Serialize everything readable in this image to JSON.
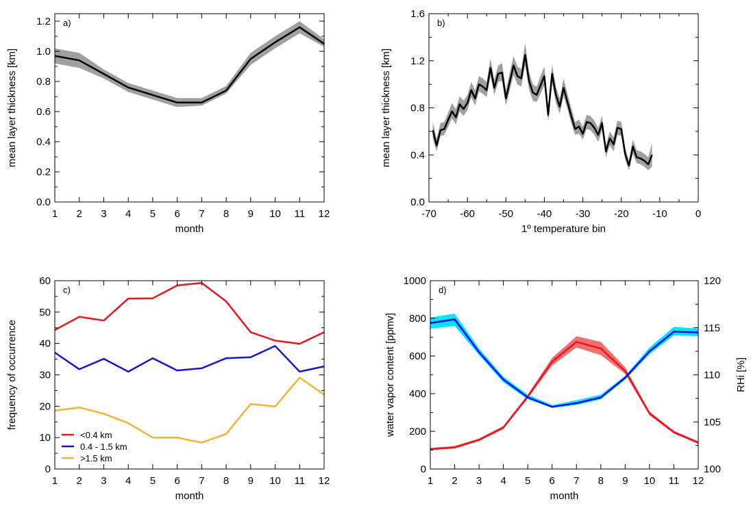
{
  "chart_data": [
    {
      "panel": "a)",
      "type": "line",
      "xlabel": "month",
      "ylabel": "mean layer thickness [km]",
      "xlim": [
        1,
        12
      ],
      "ylim": [
        0,
        1.25
      ],
      "xticks": [
        "1",
        "2",
        "3",
        "4",
        "5",
        "6",
        "7",
        "8",
        "9",
        "10",
        "11",
        "12"
      ],
      "yticks": [
        "0.0",
        "0.2",
        "0.4",
        "0.6",
        "0.8",
        "1.0",
        "1.2"
      ],
      "x": [
        1,
        2,
        3,
        4,
        5,
        6,
        7,
        8,
        9,
        10,
        11,
        12
      ],
      "series": [
        {
          "values": [
            0.97,
            0.94,
            0.85,
            0.76,
            0.71,
            0.66,
            0.66,
            0.74,
            0.95,
            1.06,
            1.16,
            1.05
          ],
          "lower": [
            0.92,
            0.89,
            0.82,
            0.73,
            0.68,
            0.63,
            0.64,
            0.72,
            0.91,
            1.02,
            1.12,
            1.03
          ],
          "upper": [
            1.02,
            0.99,
            0.88,
            0.79,
            0.74,
            0.69,
            0.69,
            0.77,
            0.99,
            1.1,
            1.2,
            1.08
          ],
          "color": "#000000",
          "band_color": "#a0a0a0"
        }
      ]
    },
    {
      "panel": "b)",
      "type": "line",
      "xlabel": "1º temperature bin",
      "ylabel": "mean layer thickness [km]",
      "xlim": [
        -70,
        0
      ],
      "ylim": [
        0,
        1.6
      ],
      "xticks": [
        "-70",
        "-60",
        "-50",
        "-40",
        "-30",
        "-20",
        "-10",
        "0"
      ],
      "yticks": [
        "0.0",
        "0.4",
        "0.8",
        "1.2",
        "1.6"
      ],
      "x": [
        -69,
        -68,
        -67,
        -66,
        -65,
        -64,
        -63,
        -62,
        -61,
        -60,
        -59,
        -58,
        -57,
        -56,
        -55,
        -54,
        -53,
        -52,
        -51,
        -50,
        -49,
        -48,
        -47,
        -46,
        -45,
        -44,
        -43,
        -42,
        -41,
        -40,
        -39,
        -38,
        -37,
        -36,
        -35,
        -34,
        -33,
        -32,
        -31,
        -30,
        -29,
        -28,
        -27,
        -26,
        -25,
        -24,
        -23,
        -22,
        -21,
        -20,
        -19,
        -18,
        -17,
        -16,
        -15,
        -14,
        -13,
        -12
      ],
      "series": [
        {
          "values": [
            0.61,
            0.48,
            0.61,
            0.62,
            0.7,
            0.77,
            0.72,
            0.83,
            0.79,
            0.84,
            0.95,
            0.88,
            1.0,
            0.98,
            0.95,
            1.14,
            0.97,
            1.09,
            1.1,
            0.88,
            1.02,
            1.16,
            1.07,
            1.05,
            1.25,
            1.03,
            0.93,
            0.91,
            0.99,
            1.07,
            0.74,
            1.09,
            0.91,
            0.81,
            0.97,
            0.85,
            0.73,
            0.62,
            0.64,
            0.58,
            0.68,
            0.67,
            0.63,
            0.57,
            0.67,
            0.43,
            0.54,
            0.49,
            0.63,
            0.62,
            0.41,
            0.31,
            0.47,
            0.38,
            0.37,
            0.35,
            0.32,
            0.4
          ],
          "lower": [
            0.54,
            0.43,
            0.56,
            0.57,
            0.64,
            0.71,
            0.66,
            0.77,
            0.73,
            0.78,
            0.89,
            0.82,
            0.94,
            0.92,
            0.89,
            1.07,
            0.91,
            1.02,
            1.03,
            0.82,
            0.95,
            1.08,
            1.0,
            0.98,
            1.16,
            0.96,
            0.86,
            0.85,
            0.92,
            0.99,
            0.68,
            1.01,
            0.84,
            0.75,
            0.9,
            0.79,
            0.67,
            0.57,
            0.58,
            0.53,
            0.62,
            0.61,
            0.57,
            0.51,
            0.61,
            0.38,
            0.48,
            0.43,
            0.57,
            0.56,
            0.36,
            0.27,
            0.41,
            0.33,
            0.32,
            0.3,
            0.27,
            0.3
          ],
          "upper": [
            0.68,
            0.54,
            0.67,
            0.68,
            0.76,
            0.84,
            0.79,
            0.9,
            0.86,
            0.91,
            1.02,
            0.95,
            1.07,
            1.05,
            1.02,
            1.22,
            1.04,
            1.16,
            1.18,
            0.95,
            1.1,
            1.24,
            1.15,
            1.13,
            1.35,
            1.11,
            1.0,
            0.98,
            1.07,
            1.15,
            0.8,
            1.17,
            0.98,
            0.88,
            1.05,
            0.92,
            0.8,
            0.68,
            0.7,
            0.64,
            0.74,
            0.73,
            0.69,
            0.63,
            0.73,
            0.48,
            0.6,
            0.55,
            0.69,
            0.68,
            0.46,
            0.35,
            0.53,
            0.44,
            0.43,
            0.41,
            0.38,
            0.5
          ],
          "color": "#000000",
          "band_color": "#a0a0a0"
        }
      ]
    },
    {
      "panel": "c)",
      "type": "line",
      "xlabel": "month",
      "ylabel": "frequency of occurrence",
      "xlim": [
        1,
        12
      ],
      "ylim": [
        0,
        60
      ],
      "xticks": [
        "1",
        "2",
        "3",
        "4",
        "5",
        "6",
        "7",
        "8",
        "9",
        "10",
        "11",
        "12"
      ],
      "yticks": [
        "0",
        "10",
        "20",
        "30",
        "40",
        "50",
        "60"
      ],
      "x": [
        1,
        2,
        3,
        4,
        5,
        6,
        7,
        8,
        9,
        10,
        11,
        12
      ],
      "legend_position": "bottom-left",
      "series": [
        {
          "name": "<0.4 km",
          "color": "#e8151b",
          "values": [
            44.3,
            48.5,
            47.3,
            54.3,
            54.4,
            58.5,
            59.3,
            53.4,
            43.6,
            40.9,
            39.9,
            43.6
          ]
        },
        {
          "name": "0.4 - 1.5 km",
          "color": "#1515d6",
          "values": [
            37.1,
            31.8,
            35.1,
            31.0,
            35.3,
            31.4,
            32.1,
            35.3,
            35.6,
            39.2,
            31.0,
            32.7
          ]
        },
        {
          "name": ">1.5 km",
          "color": "#f5b133",
          "values": [
            18.6,
            19.6,
            17.6,
            14.6,
            10.0,
            10.0,
            8.4,
            11.2,
            20.7,
            19.9,
            29.1,
            23.7
          ]
        }
      ]
    },
    {
      "panel": "d)",
      "type": "line",
      "xlabel": "month",
      "ylabel": "water vapor content [ppmv]",
      "y2label": "RHi [%]",
      "xlim": [
        1,
        12
      ],
      "ylim": [
        0,
        1000
      ],
      "y2lim": [
        100,
        120
      ],
      "xticks": [
        "1",
        "2",
        "3",
        "4",
        "5",
        "6",
        "7",
        "8",
        "9",
        "10",
        "11",
        "12"
      ],
      "yticks": [
        "0",
        "200",
        "400",
        "600",
        "800",
        "1000"
      ],
      "y2ticks": [
        "100",
        "105",
        "110",
        "115",
        "120"
      ],
      "x": [
        1,
        2,
        3,
        4,
        5,
        6,
        7,
        8,
        9,
        10,
        11,
        12
      ],
      "series": [
        {
          "axis": "left",
          "color": "#e8151b",
          "band_color": "#f07070",
          "values": [
            105,
            115,
            155,
            220,
            385,
            570,
            675,
            640,
            520,
            295,
            195,
            140
          ],
          "lower": [
            100,
            108,
            148,
            212,
            375,
            550,
            645,
            605,
            505,
            285,
            188,
            133
          ],
          "upper": [
            112,
            122,
            162,
            228,
            395,
            590,
            705,
            675,
            540,
            305,
            203,
            147
          ]
        },
        {
          "axis": "right",
          "color": "#0000ff",
          "band_color": "#00e5ff",
          "values": [
            115.5,
            115.9,
            112.4,
            109.5,
            107.6,
            106.6,
            107.0,
            107.6,
            109.7,
            112.5,
            114.6,
            114.5
          ],
          "lower": [
            114.9,
            115.2,
            112.1,
            109.2,
            107.4,
            106.5,
            106.8,
            107.4,
            109.5,
            112.2,
            114.2,
            114.1
          ],
          "upper": [
            116.1,
            116.5,
            112.8,
            109.8,
            107.9,
            106.8,
            107.3,
            107.9,
            109.9,
            112.9,
            115.1,
            114.9
          ]
        }
      ]
    }
  ]
}
